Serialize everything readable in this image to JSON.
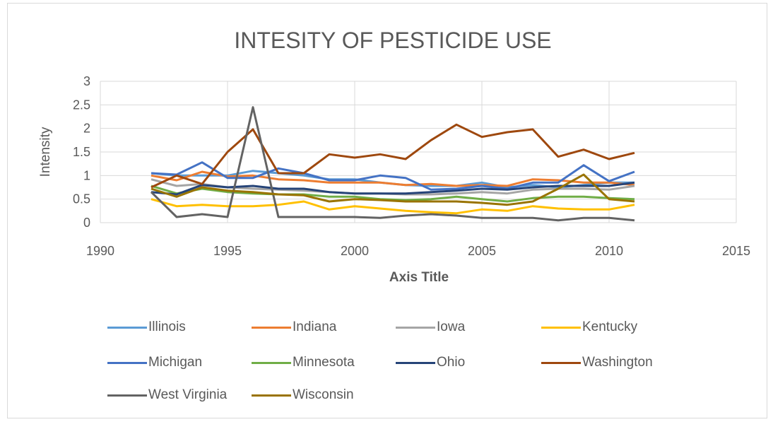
{
  "chart_data": {
    "type": "line",
    "title": "INTESITY OF PESTICIDE USE",
    "xlabel": "Axis Title",
    "ylabel": "Intensity",
    "xlim": [
      1990,
      2015
    ],
    "ylim": [
      0,
      3
    ],
    "xticks": [
      "1990",
      "1995",
      "2000",
      "2005",
      "2010",
      "2015"
    ],
    "yticks": [
      "0",
      "0.5",
      "1",
      "1.5",
      "2",
      "2.5",
      "3"
    ],
    "grid": true,
    "legend_position": "bottom",
    "x": [
      1992,
      1993,
      1994,
      1995,
      1996,
      1997,
      1998,
      1999,
      2000,
      2001,
      2002,
      2003,
      2004,
      2005,
      2006,
      2007,
      2008,
      2009,
      2010,
      2011
    ],
    "series": [
      {
        "name": "Illinois",
        "color": "#5b9bd5",
        "values": [
          1.05,
          1.0,
          1.0,
          1.0,
          1.1,
          1.05,
          1.0,
          0.92,
          0.92,
          0.85,
          0.8,
          0.78,
          0.78,
          0.85,
          0.75,
          0.8,
          0.75,
          0.8,
          0.85,
          0.85
        ]
      },
      {
        "name": "Indiana",
        "color": "#ed7d31",
        "values": [
          1.0,
          0.9,
          1.08,
          0.98,
          1.0,
          0.92,
          0.9,
          0.85,
          0.85,
          0.85,
          0.8,
          0.82,
          0.78,
          0.8,
          0.78,
          0.92,
          0.9,
          0.85,
          0.85,
          0.8
        ]
      },
      {
        "name": "Iowa",
        "color": "#a5a5a5",
        "values": [
          0.92,
          0.78,
          0.82,
          0.75,
          0.72,
          0.7,
          0.68,
          0.65,
          0.62,
          0.62,
          0.6,
          0.6,
          0.62,
          0.65,
          0.62,
          0.7,
          0.72,
          0.72,
          0.7,
          0.78
        ]
      },
      {
        "name": "Kentucky",
        "color": "#ffc000",
        "values": [
          0.5,
          0.35,
          0.38,
          0.35,
          0.35,
          0.38,
          0.45,
          0.28,
          0.35,
          0.3,
          0.25,
          0.22,
          0.2,
          0.28,
          0.25,
          0.35,
          0.3,
          0.28,
          0.28,
          0.38
        ]
      },
      {
        "name": "Michigan",
        "color": "#4472c4",
        "values": [
          1.05,
          1.02,
          1.28,
          0.95,
          0.95,
          1.15,
          1.05,
          0.9,
          0.9,
          1.0,
          0.95,
          0.7,
          0.72,
          0.78,
          0.72,
          0.85,
          0.85,
          1.22,
          0.88,
          1.08
        ]
      },
      {
        "name": "Minnesota",
        "color": "#70ad47",
        "values": [
          0.78,
          0.62,
          0.72,
          0.65,
          0.62,
          0.6,
          0.6,
          0.55,
          0.55,
          0.5,
          0.48,
          0.5,
          0.55,
          0.5,
          0.45,
          0.52,
          0.55,
          0.55,
          0.52,
          0.5
        ]
      },
      {
        "name": "Ohio",
        "color": "#264478",
        "values": [
          0.65,
          0.6,
          0.8,
          0.75,
          0.78,
          0.72,
          0.72,
          0.65,
          0.62,
          0.62,
          0.62,
          0.65,
          0.68,
          0.72,
          0.7,
          0.75,
          0.78,
          0.78,
          0.78,
          0.85
        ]
      },
      {
        "name": "Washington",
        "color": "#9e480e",
        "values": [
          0.75,
          1.0,
          0.82,
          1.5,
          1.98,
          1.05,
          1.05,
          1.45,
          1.38,
          1.45,
          1.35,
          1.75,
          2.08,
          1.82,
          1.92,
          1.98,
          1.4,
          1.55,
          1.35,
          1.48
        ]
      },
      {
        "name": "West Virginia",
        "color": "#636363",
        "values": [
          0.65,
          0.12,
          0.18,
          0.12,
          2.45,
          0.12,
          0.12,
          0.12,
          0.12,
          0.1,
          0.15,
          0.18,
          0.15,
          0.1,
          0.1,
          0.1,
          0.05,
          0.1,
          0.1,
          0.05
        ]
      },
      {
        "name": "Wisconsin",
        "color": "#997300",
        "values": [
          0.72,
          0.55,
          0.75,
          0.68,
          0.65,
          0.6,
          0.58,
          0.45,
          0.5,
          0.48,
          0.45,
          0.45,
          0.45,
          0.42,
          0.38,
          0.45,
          0.72,
          1.02,
          0.5,
          0.45
        ]
      }
    ]
  }
}
